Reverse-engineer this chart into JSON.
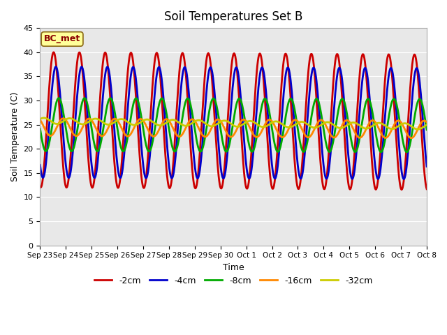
{
  "title": "Soil Temperatures Set B",
  "xlabel": "Time",
  "ylabel": "Soil Temperature (C)",
  "annotation": "BC_met",
  "ylim": [
    0,
    45
  ],
  "yticks": [
    0,
    5,
    10,
    15,
    20,
    25,
    30,
    35,
    40,
    45
  ],
  "series": {
    "-2cm": {
      "color": "#cc0000",
      "lw": 2.0
    },
    "-4cm": {
      "color": "#0000cc",
      "lw": 2.0
    },
    "-8cm": {
      "color": "#00aa00",
      "lw": 2.0
    },
    "-16cm": {
      "color": "#ff8800",
      "lw": 2.0
    },
    "-32cm": {
      "color": "#cccc00",
      "lw": 2.0
    }
  },
  "legend_order": [
    "-2cm",
    "-4cm",
    "-8cm",
    "-16cm",
    "-32cm"
  ],
  "bg_inner": "#e8e8e8",
  "bg_outer": "#ffffff",
  "x_labels": [
    "Sep 23",
    "Sep 24",
    "Sep 25",
    "Sep 26",
    "Sep 27",
    "Sep 28",
    "Sep 29",
    "Sep 30",
    "Oct 1",
    "Oct 2",
    "Oct 3",
    "Oct 4",
    "Oct 5",
    "Oct 6",
    "Oct 7",
    "Oct 8"
  ],
  "num_days": 15,
  "points_per_day": 48
}
